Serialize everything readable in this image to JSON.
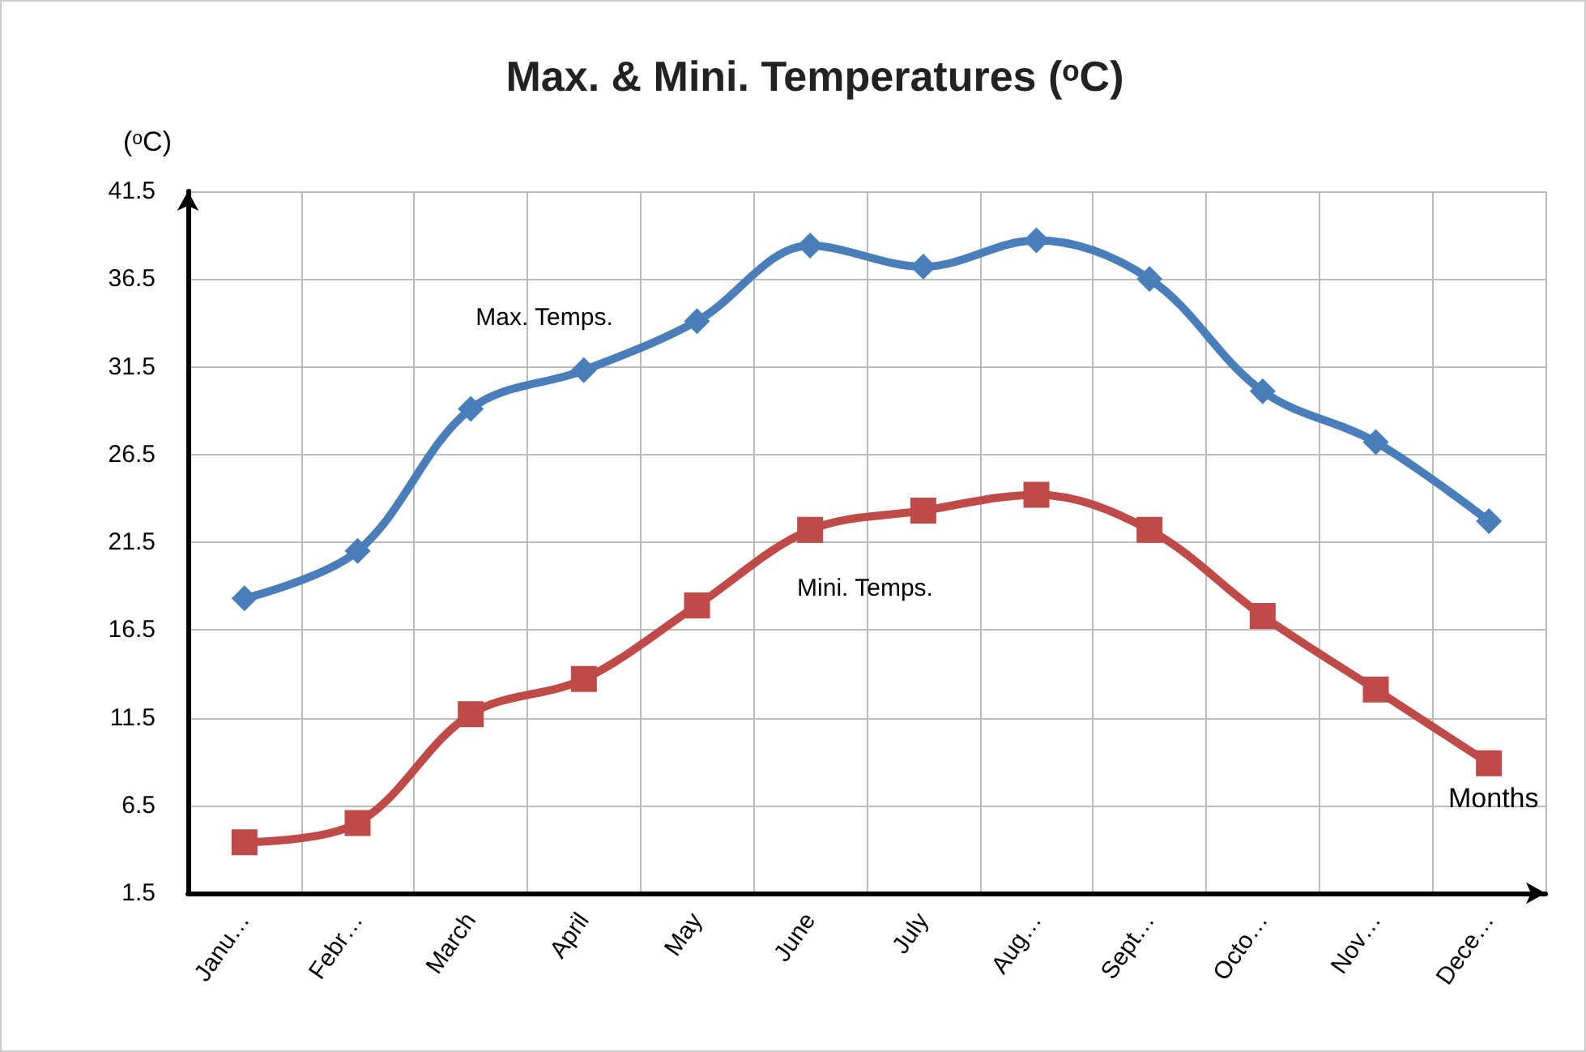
{
  "chart_data": {
    "type": "line",
    "title": "Max. & Mini. Temperatures (ᵒC)",
    "ylabel": "(ᵒC)",
    "xlabel": "Months",
    "categories": [
      "Janu…",
      "Febr…",
      "March",
      "April",
      "May",
      "June",
      "July",
      "Aug…",
      "Sept…",
      "Octo…",
      "Nov…",
      "Dece…"
    ],
    "series": [
      {
        "color": "#4a7ebb",
        "marker": "diamond",
        "values": [
          18.3,
          21.0,
          29.1,
          31.3,
          34.1,
          38.4,
          37.2,
          38.7,
          36.5,
          30.1,
          27.2,
          22.7
        ]
      },
      {
        "color": "#be4b48",
        "marker": "square",
        "values": [
          4.4,
          5.5,
          11.7,
          13.7,
          17.9,
          22.2,
          23.3,
          24.2,
          22.2,
          17.3,
          13.1,
          8.9
        ]
      }
    ],
    "annotations": [
      "Max. Temps.",
      "Mini. Temps."
    ],
    "ylim": [
      1.5,
      41.5
    ],
    "yticks": [
      1.5,
      6.5,
      11.5,
      16.5,
      21.5,
      26.5,
      31.5,
      36.5,
      41.5
    ],
    "grid": true,
    "line_style": "solid"
  }
}
